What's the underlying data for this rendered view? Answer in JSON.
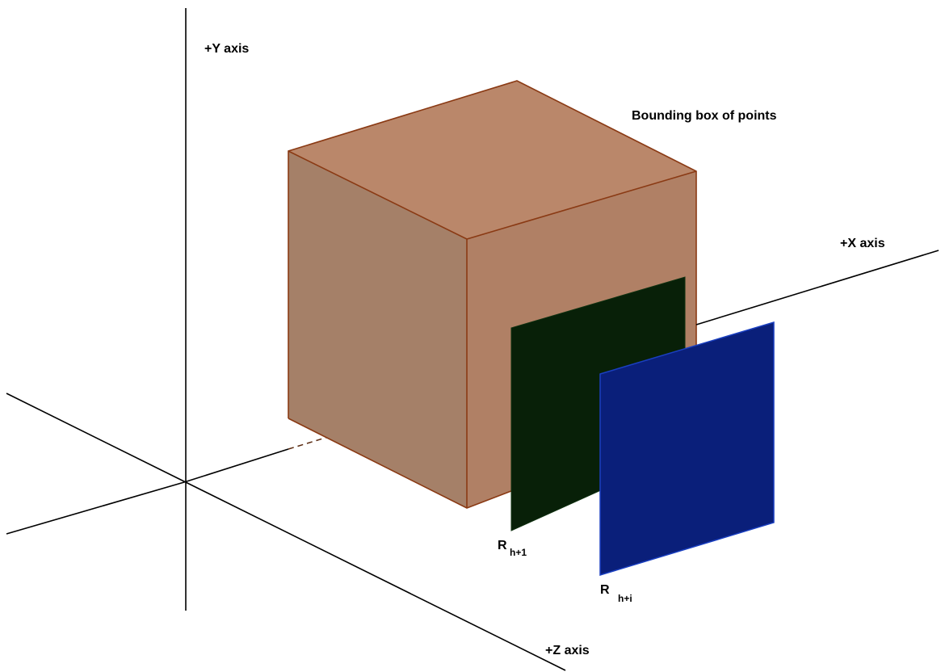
{
  "axes": {
    "y_label": "+Y axis",
    "x_label": "+X axis",
    "z_label": "+Z axis"
  },
  "bounding_box": {
    "label": "Bounding box of points",
    "fill_color": "#b07a5f",
    "edge_color": "#8a3a14"
  },
  "planes": [
    {
      "label_main": "R",
      "label_sub": "h+1",
      "color": "#082008"
    },
    {
      "label_main": "R",
      "label_sub": "h+i",
      "color": "#0a1f7a"
    }
  ]
}
